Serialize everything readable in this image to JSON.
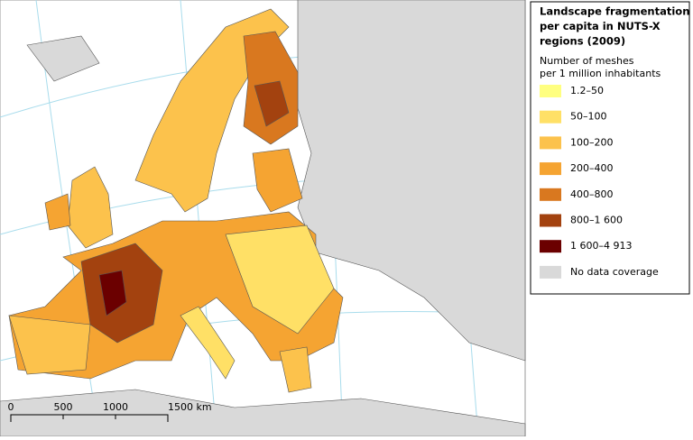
{
  "legend": {
    "title": [
      "Landscape fragmentation",
      "per capita in NUTS-X",
      "regions (2009)"
    ],
    "subtitle": [
      "Number of meshes",
      "per 1 million inhabitants"
    ],
    "items": [
      {
        "label": "1.2–50",
        "color": "#ffff80"
      },
      {
        "label": "50–100",
        "color": "#ffe066"
      },
      {
        "label": "100–200",
        "color": "#fcc24c"
      },
      {
        "label": "200–400",
        "color": "#f5a432"
      },
      {
        "label": "400–800",
        "color": "#d9781f"
      },
      {
        "label": "800–1 600",
        "color": "#a3420f"
      },
      {
        "label": "1 600–4 913",
        "color": "#6b0000"
      },
      {
        "label": "No data coverage",
        "color": "#d9d9d9"
      }
    ]
  },
  "scale_bar": {
    "labels": [
      "0",
      "500",
      "1000",
      "1500 km"
    ]
  }
}
